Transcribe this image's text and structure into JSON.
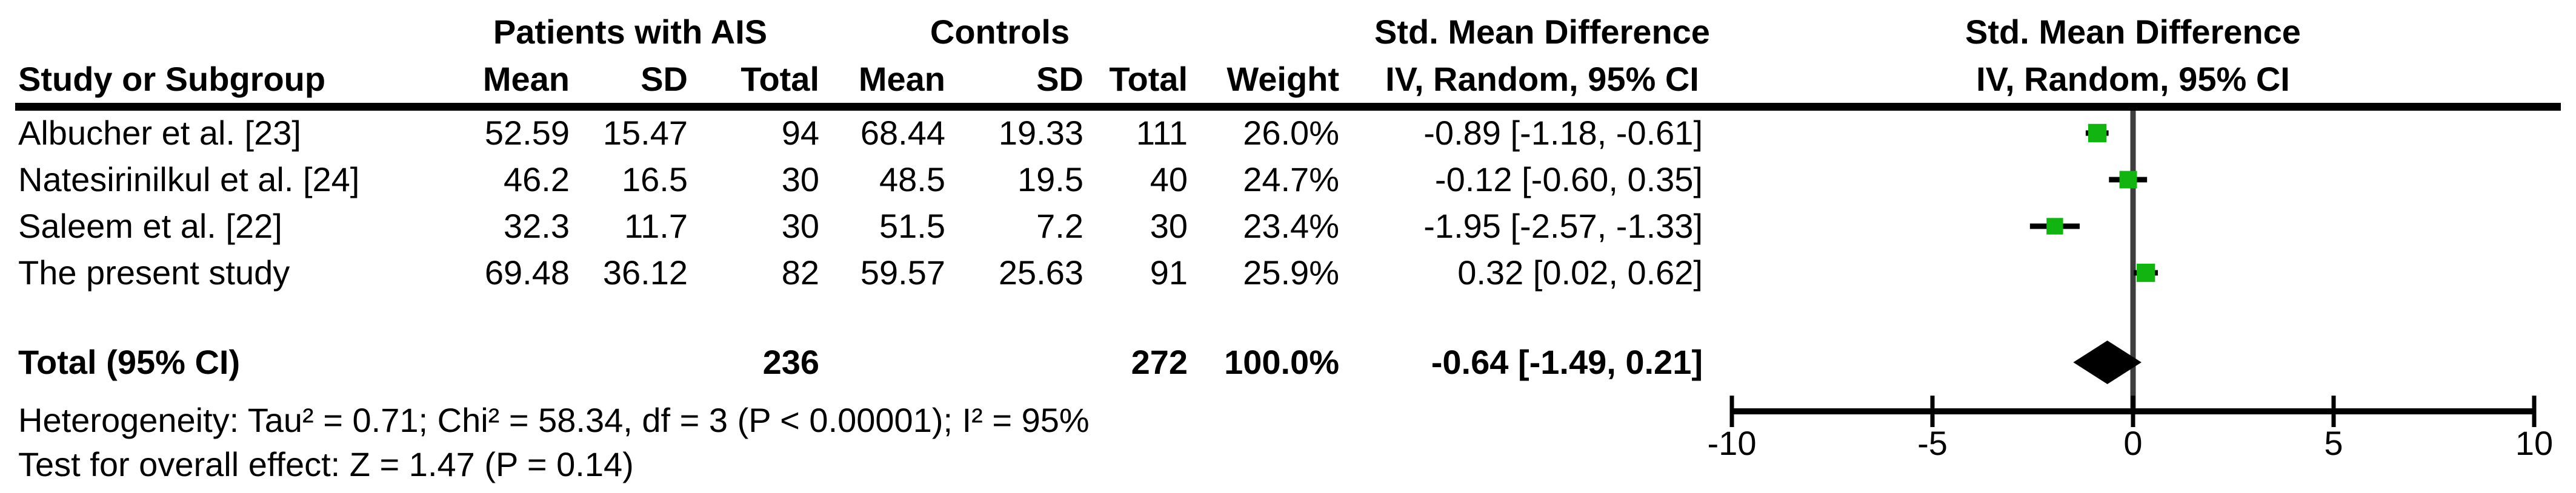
{
  "colors": {
    "marker_green": "#11b411",
    "diamond_black": "#000000",
    "zero_line_gray": "#3d3d3d",
    "axis_black": "#000000",
    "text": "#000000"
  },
  "table": {
    "headers": {
      "study": "Study or Subgroup",
      "group_experimental": "Patients with AIS",
      "group_control": "Controls",
      "mean_exp": "Mean",
      "sd_exp": "SD",
      "total_exp": "Total",
      "mean_ctrl": "Mean",
      "sd_ctrl": "SD",
      "total_ctrl": "Total",
      "weight": "Weight",
      "smd_text_line1": "Std. Mean Difference",
      "smd_text_line2": "IV, Random, 95% CI",
      "smd_plot_line1": "Std. Mean Difference",
      "smd_plot_line2": "IV, Random, 95% CI"
    },
    "footer": {
      "heterogeneity": "Heterogeneity: Tau² = 0.71; Chi² = 58.34, df = 3 (P < 0.00001); I² = 95%",
      "overall_effect": "Test for overall effect: Z = 1.47 (P = 0.14)"
    }
  },
  "chart_data": {
    "type": "forest",
    "effect_measure": "Std. Mean Difference",
    "model": "IV, Random, 95% CI",
    "axis": {
      "ticks": [
        -10,
        -5,
        0,
        5,
        10
      ],
      "range": [
        -10,
        10
      ],
      "tick_labels": [
        "-10",
        "-5",
        "0",
        "5",
        "10"
      ]
    },
    "studies": [
      {
        "name": "Albucher et al. [23]",
        "mean_exp": "52.59",
        "sd_exp": "15.47",
        "total_exp": "94",
        "mean_ctrl": "68.44",
        "sd_ctrl": "19.33",
        "total_ctrl": "111",
        "weight": "26.0%",
        "weight_pct": 26.0,
        "smd_ci": "-0.89 [-1.18, -0.61]",
        "est": -0.89,
        "lo": -1.18,
        "hi": -0.61
      },
      {
        "name": "Natesirinilkul et al. [24]",
        "mean_exp": "46.2",
        "sd_exp": "16.5",
        "total_exp": "30",
        "mean_ctrl": "48.5",
        "sd_ctrl": "19.5",
        "total_ctrl": "40",
        "weight": "24.7%",
        "weight_pct": 24.7,
        "smd_ci": "-0.12 [-0.60, 0.35]",
        "est": -0.12,
        "lo": -0.6,
        "hi": 0.35
      },
      {
        "name": "Saleem et al. [22]",
        "mean_exp": "32.3",
        "sd_exp": "11.7",
        "total_exp": "30",
        "mean_ctrl": "51.5",
        "sd_ctrl": "7.2",
        "total_ctrl": "30",
        "weight": "23.4%",
        "weight_pct": 23.4,
        "smd_ci": "-1.95 [-2.57, -1.33]",
        "est": -1.95,
        "lo": -2.57,
        "hi": -1.33
      },
      {
        "name": "The present study",
        "mean_exp": "69.48",
        "sd_exp": "36.12",
        "total_exp": "82",
        "mean_ctrl": "59.57",
        "sd_ctrl": "25.63",
        "total_ctrl": "91",
        "weight": "25.9%",
        "weight_pct": 25.9,
        "smd_ci": "0.32 [0.02, 0.62]",
        "est": 0.32,
        "lo": 0.02,
        "hi": 0.62
      }
    ],
    "total": {
      "label": "Total (95% CI)",
      "total_exp": "236",
      "total_ctrl": "272",
      "weight": "100.0%",
      "smd_ci": "-0.64 [-1.49, 0.21]",
      "est": -0.64,
      "lo": -1.49,
      "hi": 0.21
    }
  }
}
